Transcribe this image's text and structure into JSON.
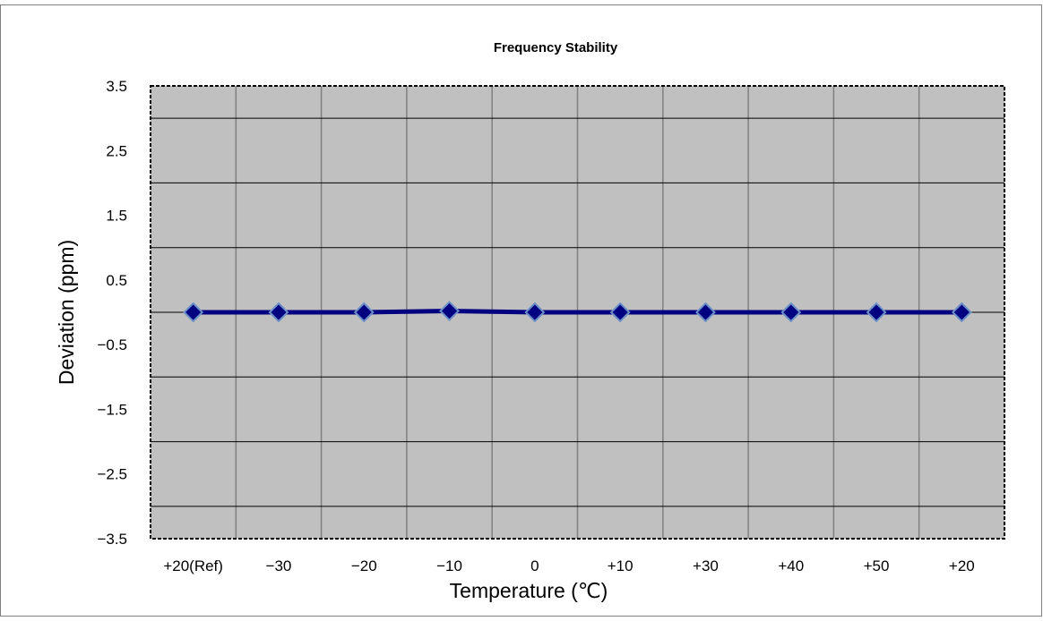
{
  "chart_data": {
    "type": "line",
    "title": "Frequency Stability",
    "xlabel": "Temperature (℃)",
    "ylabel": "Deviation (ppm)",
    "categories": [
      "+20(Ref)",
      "−30",
      "−20",
      "−10",
      "0",
      "+10",
      "+30",
      "+40",
      "+50",
      "+20"
    ],
    "series": [
      {
        "values": [
          0.0,
          0.0,
          0.0,
          0.02,
          0.0,
          0.0,
          0.0,
          0.0,
          0.0,
          0.0
        ]
      }
    ],
    "yticks": [
      3.5,
      2.5,
      1.5,
      0.5,
      -0.5,
      -1.5,
      -2.5,
      -3.5
    ],
    "ytick_labels": [
      "3.5",
      "2.5",
      "1.5",
      "0.5",
      "−0.5",
      "−1.5",
      "−2.5",
      "−3.5"
    ],
    "ylim": [
      -3.5,
      3.5
    ],
    "grid": true,
    "legend": "none",
    "colors": {
      "plot_background": "#c0c0c0",
      "line": "#000080",
      "marker_fill": "#000080",
      "marker_stroke": "#6c8fc8",
      "gridline": "#808080",
      "zero_line": "#000000"
    },
    "marker": "diamond-icon"
  }
}
